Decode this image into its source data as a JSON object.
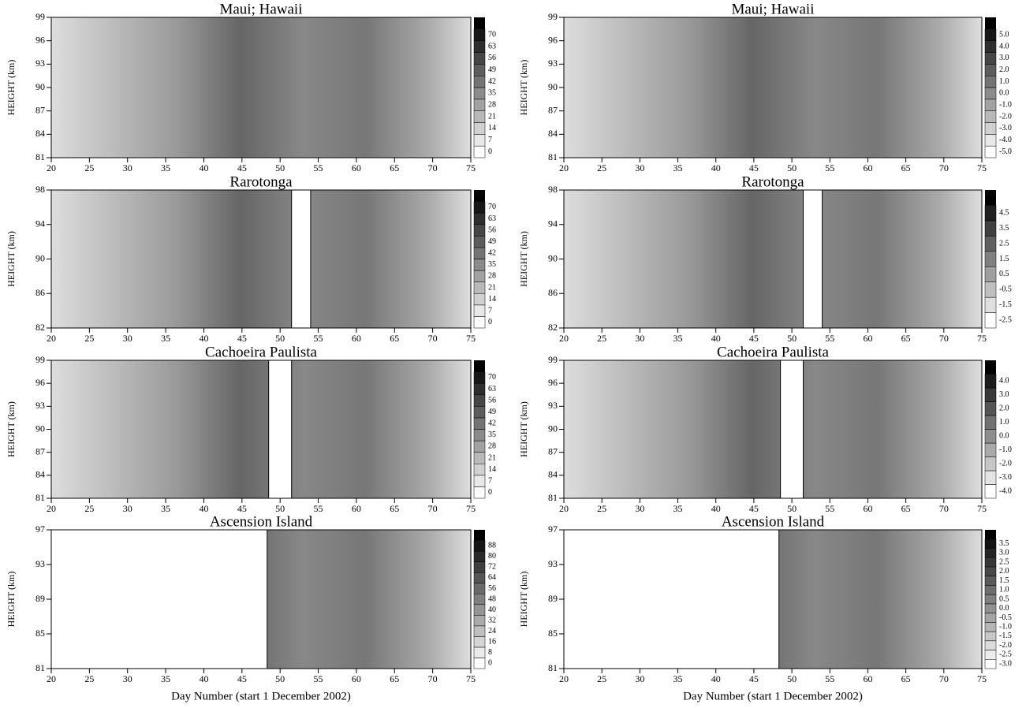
{
  "chart_data": [
    {
      "type": "contour",
      "title": "Maui;  Hawaii",
      "ylabel": "HEIGHT (km)",
      "xlim": [
        20,
        75
      ],
      "xticks": [
        20,
        25,
        30,
        35,
        40,
        45,
        50,
        55,
        60,
        65,
        70,
        75
      ],
      "ylim": [
        81,
        99
      ],
      "yticks": [
        81,
        84,
        87,
        90,
        93,
        96,
        99
      ],
      "levels": [
        0,
        7,
        14,
        21,
        28,
        35,
        42,
        49,
        56,
        63,
        70
      ],
      "no_data": []
    },
    {
      "type": "contour",
      "title": "Maui;  Hawaii",
      "ylabel": "HEIGHT (km)",
      "xlim": [
        20,
        75
      ],
      "xticks": [
        20,
        25,
        30,
        35,
        40,
        45,
        50,
        55,
        60,
        65,
        70,
        75
      ],
      "ylim": [
        81,
        99
      ],
      "yticks": [
        81,
        84,
        87,
        90,
        93,
        96,
        99
      ],
      "levels": [
        {
          "value": -5,
          "label": "-5.0"
        },
        {
          "value": -4,
          "label": "-4.0"
        },
        {
          "value": -3,
          "label": "-3.0"
        },
        {
          "value": -2,
          "label": "-2.0"
        },
        {
          "value": -1,
          "label": "-1.0"
        },
        {
          "value": 0,
          "label": "0.0"
        },
        {
          "value": 1,
          "label": "1.0"
        },
        {
          "value": 2,
          "label": "2.0"
        },
        {
          "value": 3,
          "label": "3.0"
        },
        {
          "value": 4,
          "label": "4.0"
        },
        {
          "value": 5,
          "label": "5.0"
        }
      ],
      "no_data": []
    },
    {
      "type": "contour",
      "title": "Rarotonga",
      "ylabel": "HEIGHT (km)",
      "xlim": [
        20,
        75
      ],
      "xticks": [
        20,
        25,
        30,
        35,
        40,
        45,
        50,
        55,
        60,
        65,
        70,
        75
      ],
      "ylim": [
        82,
        98
      ],
      "yticks": [
        82,
        86,
        90,
        94,
        98
      ],
      "levels": [
        0,
        7,
        14,
        21,
        28,
        35,
        42,
        49,
        56,
        63,
        70
      ],
      "no_data": [
        [
          51.5,
          54
        ]
      ]
    },
    {
      "type": "contour",
      "title": "Rarotonga",
      "ylabel": "HEIGHT (km)",
      "xlim": [
        20,
        75
      ],
      "xticks": [
        20,
        25,
        30,
        35,
        40,
        45,
        50,
        55,
        60,
        65,
        70,
        75
      ],
      "ylim": [
        82,
        98
      ],
      "yticks": [
        82,
        86,
        90,
        94,
        98
      ],
      "levels": [
        -2.5,
        -1.5,
        -0.5,
        0.5,
        1.5,
        2.5,
        3.5,
        4.5
      ],
      "no_data": [
        [
          51.5,
          54
        ]
      ]
    },
    {
      "type": "contour",
      "title": "Cachoeira Paulista",
      "ylabel": "HEIGHT (km)",
      "xlim": [
        20,
        75
      ],
      "xticks": [
        20,
        25,
        30,
        35,
        40,
        45,
        50,
        55,
        60,
        65,
        70,
        75
      ],
      "ylim": [
        81,
        99
      ],
      "yticks": [
        81,
        84,
        87,
        90,
        93,
        96,
        99
      ],
      "levels": [
        0,
        7,
        14,
        21,
        28,
        35,
        42,
        49,
        56,
        63,
        70
      ],
      "no_data": [
        [
          48.5,
          51.5
        ]
      ]
    },
    {
      "type": "contour",
      "title": "Cachoeira Paulista",
      "ylabel": "HEIGHT (km)",
      "xlim": [
        20,
        75
      ],
      "xticks": [
        20,
        25,
        30,
        35,
        40,
        45,
        50,
        55,
        60,
        65,
        70,
        75
      ],
      "ylim": [
        81,
        99
      ],
      "yticks": [
        81,
        84,
        87,
        90,
        93,
        96,
        99
      ],
      "levels": [
        {
          "value": -4,
          "label": "-4.0"
        },
        {
          "value": -3,
          "label": "-3.0"
        },
        {
          "value": -2,
          "label": "-2.0"
        },
        {
          "value": -1,
          "label": "-1.0"
        },
        {
          "value": 0,
          "label": "0.0"
        },
        {
          "value": 1,
          "label": "1.0"
        },
        {
          "value": 2,
          "label": "2.0"
        },
        {
          "value": 3,
          "label": "3.0"
        },
        {
          "value": 4,
          "label": "4.0"
        }
      ],
      "no_data": [
        [
          48.5,
          51.5
        ]
      ]
    },
    {
      "type": "contour",
      "title": "Ascension Island",
      "ylabel": "HEIGHT (km)",
      "xlabel": "Day Number (start 1 December 2002)",
      "xlim": [
        20,
        75
      ],
      "xticks": [
        20,
        25,
        30,
        35,
        40,
        45,
        50,
        55,
        60,
        65,
        70,
        75
      ],
      "ylim": [
        81,
        97
      ],
      "yticks": [
        81,
        85,
        89,
        93,
        97
      ],
      "levels": [
        0,
        8,
        16,
        24,
        32,
        40,
        48,
        56,
        64,
        72,
        80,
        88
      ],
      "no_data": [
        [
          20,
          48.3
        ]
      ]
    },
    {
      "type": "contour",
      "title": "Ascension Island",
      "ylabel": "HEIGHT (km)",
      "xlabel": "Day Number (start 1 December 2002)",
      "xlim": [
        20,
        75
      ],
      "xticks": [
        20,
        25,
        30,
        35,
        40,
        45,
        50,
        55,
        60,
        65,
        70,
        75
      ],
      "ylim": [
        81,
        97
      ],
      "yticks": [
        81,
        85,
        89,
        93,
        97
      ],
      "levels": [
        {
          "value": -3,
          "label": "-3.0"
        },
        {
          "value": -2.5,
          "label": "-2.5"
        },
        {
          "value": -2,
          "label": "-2.0"
        },
        {
          "value": -1.5,
          "label": "-1.5"
        },
        {
          "value": -1,
          "label": "-1.0"
        },
        {
          "value": -0.5,
          "label": "-0.5"
        },
        {
          "value": 0,
          "label": "0.0"
        },
        {
          "value": 0.5,
          "label": "0.5"
        },
        {
          "value": 1,
          "label": "1.0"
        },
        {
          "value": 1.5,
          "label": "1.5"
        },
        {
          "value": 2,
          "label": "2.0"
        },
        {
          "value": 2.5,
          "label": "2.5"
        },
        {
          "value": 3,
          "label": "3.0"
        },
        {
          "value": 3.5,
          "label": "3.5"
        }
      ],
      "no_data": [
        [
          20,
          48.3
        ]
      ]
    }
  ]
}
